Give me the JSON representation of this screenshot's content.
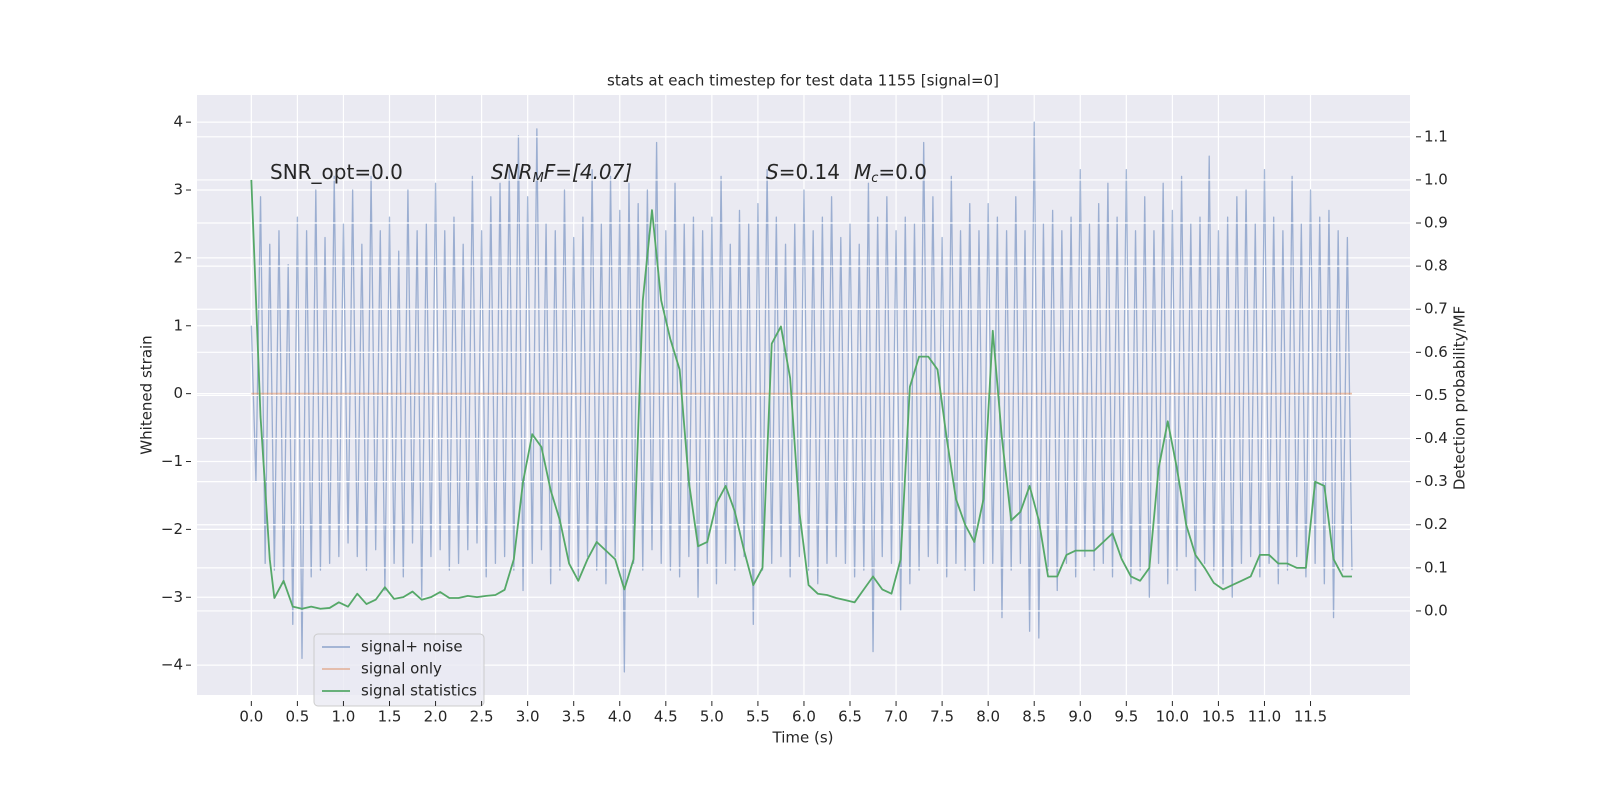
{
  "chart_data": {
    "type": "line",
    "title": "stats at each timestep for test data 1155 [signal=0]",
    "xlabel": "Time (s)",
    "ylabel": "Whitened strain",
    "y2label": "Detection probability/MF",
    "annotations": [
      [
        "SNR_opt=0.0"
      ],
      [
        "SNR",
        "M",
        "F=[4.07]"
      ],
      [
        "S",
        "=0.14",
        "M",
        "c",
        "=0.0"
      ]
    ],
    "xlim": [
      -0.59,
      12.58
    ],
    "ylim": [
      -4.44,
      4.4
    ],
    "y2lim": [
      -0.195,
      1.197
    ],
    "xticks": [
      {
        "value": 0,
        "label": "0.0"
      },
      0.5,
      {
        "value": 1,
        "label": "1.0"
      },
      1.5,
      {
        "value": 2,
        "label": "2.0"
      },
      2.5,
      {
        "value": 3,
        "label": "3.0"
      },
      3.5,
      {
        "value": 4,
        "label": "4.0"
      },
      4.5,
      {
        "value": 5,
        "label": "5.0"
      },
      5.5,
      {
        "value": 6,
        "label": "6.0"
      },
      6.5,
      {
        "value": 7,
        "label": "7.0"
      },
      7.5,
      {
        "value": 8,
        "label": "8.0"
      },
      8.5,
      {
        "value": 9,
        "label": "9.0"
      },
      9.5,
      {
        "value": 10,
        "label": "10.0"
      },
      10.5,
      {
        "value": 11,
        "label": "11.0"
      },
      11.5
    ],
    "yticks": [
      {
        "value": -4,
        "label": "−4"
      },
      {
        "value": -3,
        "label": "−3"
      },
      {
        "value": -2,
        "label": "−2"
      },
      {
        "value": -1,
        "label": "−1"
      },
      0,
      1,
      2,
      3,
      4
    ],
    "y2ticks": [
      {
        "value": 0,
        "label": "0.0"
      },
      0.1,
      0.2,
      0.3,
      0.4,
      0.5,
      0.6,
      0.7,
      0.8,
      0.9,
      {
        "value": 1,
        "label": "1.0"
      },
      1.1
    ],
    "grid": true,
    "legend": "lower left",
    "series": [
      {
        "name": "signal+ noise",
        "color": "#4c72b0",
        "x": [
          0,
          0.05,
          0.1,
          0.15,
          0.2,
          0.25,
          0.3,
          0.35,
          0.4,
          0.45,
          0.5,
          0.55,
          0.6,
          0.65,
          0.7,
          0.75,
          0.8,
          0.85,
          0.9,
          0.95,
          1,
          1.05,
          1.1,
          1.15,
          1.2,
          1.25,
          1.3,
          1.35,
          1.4,
          1.45,
          1.5,
          1.55,
          1.6,
          1.65,
          1.7,
          1.75,
          1.8,
          1.85,
          1.9,
          1.95,
          2,
          2.05,
          2.1,
          2.15,
          2.2,
          2.25,
          2.3,
          2.35,
          2.4,
          2.45,
          2.5,
          2.55,
          2.6,
          2.65,
          2.7,
          2.75,
          2.8,
          2.85,
          2.9,
          2.95,
          3,
          3.05,
          3.1,
          3.15,
          3.2,
          3.25,
          3.3,
          3.35,
          3.4,
          3.45,
          3.5,
          3.55,
          3.6,
          3.65,
          3.7,
          3.75,
          3.8,
          3.85,
          3.9,
          3.95,
          4,
          4.05,
          4.1,
          4.15,
          4.2,
          4.25,
          4.3,
          4.35,
          4.4,
          4.45,
          4.5,
          4.55,
          4.6,
          4.65,
          4.7,
          4.75,
          4.8,
          4.85,
          4.9,
          4.95,
          5,
          5.05,
          5.1,
          5.15,
          5.2,
          5.25,
          5.3,
          5.35,
          5.4,
          5.45,
          5.5,
          5.55,
          5.6,
          5.65,
          5.7,
          5.75,
          5.8,
          5.85,
          5.9,
          5.95,
          6,
          6.05,
          6.1,
          6.15,
          6.2,
          6.25,
          6.3,
          6.35,
          6.4,
          6.45,
          6.5,
          6.55,
          6.6,
          6.65,
          6.7,
          6.75,
          6.8,
          6.85,
          6.9,
          6.95,
          7,
          7.05,
          7.1,
          7.15,
          7.2,
          7.25,
          7.3,
          7.35,
          7.4,
          7.45,
          7.5,
          7.55,
          7.6,
          7.65,
          7.7,
          7.75,
          7.8,
          7.85,
          7.9,
          7.95,
          8,
          8.05,
          8.1,
          8.15,
          8.2,
          8.25,
          8.3,
          8.35,
          8.4,
          8.45,
          8.5,
          8.55,
          8.6,
          8.65,
          8.7,
          8.75,
          8.8,
          8.85,
          8.9,
          8.95,
          9,
          9.05,
          9.1,
          9.15,
          9.2,
          9.25,
          9.3,
          9.35,
          9.4,
          9.45,
          9.5,
          9.55,
          9.6,
          9.65,
          9.7,
          9.75,
          9.8,
          9.85,
          9.9,
          9.95,
          10,
          10.05,
          10.1,
          10.15,
          10.2,
          10.25,
          10.3,
          10.35,
          10.4,
          10.45,
          10.5,
          10.55,
          10.6,
          10.65,
          10.7,
          10.75,
          10.8,
          10.85,
          10.9,
          10.95,
          11,
          11.05,
          11.1,
          11.15,
          11.2,
          11.25,
          11.3,
          11.35,
          11.4,
          11.45,
          11.5,
          11.55,
          11.6,
          11.65,
          11.7,
          11.75,
          11.8,
          11.85,
          11.9,
          11.95
        ],
        "values": [
          1.0,
          -1.3,
          2.9,
          -2.5,
          2.2,
          -2.6,
          2.4,
          -2.8,
          1.9,
          -3.4,
          2.6,
          -3.9,
          2.4,
          -2.7,
          3.0,
          -2.6,
          2.3,
          -2.5,
          3.2,
          -2.4,
          2.5,
          -2.2,
          3.0,
          -2.4,
          2.2,
          -2.6,
          3.2,
          -2.3,
          2.4,
          -2.9,
          2.6,
          -2.5,
          2.1,
          -2.7,
          3.0,
          -2.2,
          2.4,
          -3.0,
          2.5,
          -2.4,
          3.1,
          -2.3,
          2.4,
          -2.6,
          2.6,
          -2.5,
          2.2,
          -2.3,
          3.2,
          -2.2,
          2.4,
          -2.7,
          2.9,
          -2.5,
          3.1,
          -2.4,
          3.3,
          -2.6,
          3.8,
          -2.9,
          2.9,
          -2.5,
          3.9,
          -2.3,
          2.5,
          -2.8,
          2.4,
          -2.6,
          3.0,
          -2.5,
          2.3,
          -2.7,
          2.6,
          -2.4,
          3.3,
          -2.6,
          2.5,
          -2.8,
          3.2,
          -2.4,
          2.7,
          -4.1,
          3.1,
          -2.5,
          2.8,
          -2.6,
          3.0,
          -2.3,
          3.7,
          -2.5,
          2.4,
          -2.6,
          3.1,
          -2.7,
          2.5,
          -2.4,
          2.6,
          -3.0,
          2.4,
          -2.5,
          2.6,
          -2.8,
          3.2,
          -2.5,
          2.2,
          -2.6,
          2.7,
          -2.4,
          2.5,
          -3.4,
          2.8,
          -2.6,
          3.3,
          -2.5,
          2.6,
          -2.4,
          2.2,
          -2.7,
          2.5,
          -2.4,
          3.0,
          -2.6,
          2.4,
          -2.8,
          2.6,
          -2.5,
          2.9,
          -2.4,
          2.3,
          -2.5,
          2.5,
          -2.7,
          2.2,
          -2.6,
          3.1,
          -3.8,
          2.6,
          -2.4,
          2.9,
          -2.5,
          2.4,
          -3.2,
          2.6,
          -2.8,
          2.5,
          -2.6,
          3.7,
          -2.4,
          2.9,
          -2.5,
          2.3,
          -2.7,
          3.2,
          -2.5,
          2.4,
          -2.6,
          2.8,
          -2.9,
          2.4,
          -2.5,
          2.8,
          -2.5,
          2.6,
          -3.3,
          2.4,
          -2.6,
          2.9,
          -2.5,
          2.4,
          -3.5,
          4.0,
          -3.6,
          2.5,
          -2.6,
          2.7,
          -2.9,
          2.4,
          -2.5,
          2.6,
          -2.7,
          3.3,
          -2.4,
          2.5,
          -2.6,
          2.8,
          -2.5,
          3.1,
          -2.7,
          2.6,
          -2.4,
          3.3,
          -2.8,
          2.4,
          -2.6,
          2.9,
          -3.0,
          2.4,
          -2.5,
          3.1,
          -2.8,
          2.7,
          -2.6,
          3.2,
          -2.4,
          2.5,
          -2.9,
          2.6,
          -2.5,
          3.5,
          -2.6,
          2.4,
          -2.8,
          2.6,
          -3.0,
          2.9,
          -2.5,
          3.0,
          -2.4,
          2.5,
          -2.7,
          3.3,
          -2.5,
          2.6,
          -2.8,
          2.4,
          -2.6,
          3.2,
          -2.4,
          2.5,
          -2.7,
          3.0,
          -2.5,
          2.6,
          -2.8,
          2.7,
          -3.3,
          2.4,
          -2.6,
          2.3,
          -2.6
        ]
      },
      {
        "name": "signal only",
        "color": "#dd8452",
        "x": [
          0,
          11.95
        ],
        "values": [
          0,
          0
        ]
      },
      {
        "name": "signal statistics",
        "color": "#55a868",
        "axis": "y2",
        "x": [
          0,
          0.1,
          0.2,
          0.25,
          0.35,
          0.45,
          0.55,
          0.65,
          0.75,
          0.85,
          0.95,
          1.05,
          1.15,
          1.25,
          1.35,
          1.45,
          1.55,
          1.65,
          1.75,
          1.85,
          1.95,
          2.05,
          2.15,
          2.25,
          2.35,
          2.45,
          2.55,
          2.65,
          2.75,
          2.85,
          2.95,
          3.05,
          3.15,
          3.25,
          3.35,
          3.45,
          3.55,
          3.65,
          3.75,
          3.85,
          3.95,
          4.05,
          4.15,
          4.25,
          4.35,
          4.45,
          4.55,
          4.65,
          4.75,
          4.85,
          4.95,
          5.05,
          5.15,
          5.25,
          5.35,
          5.45,
          5.55,
          5.65,
          5.75,
          5.85,
          5.95,
          6.05,
          6.15,
          6.25,
          6.35,
          6.45,
          6.55,
          6.65,
          6.75,
          6.85,
          6.95,
          7.05,
          7.15,
          7.25,
          7.35,
          7.45,
          7.55,
          7.65,
          7.75,
          7.85,
          7.95,
          8.05,
          8.15,
          8.25,
          8.35,
          8.45,
          8.55,
          8.65,
          8.75,
          8.85,
          8.95,
          9.05,
          9.15,
          9.25,
          9.35,
          9.45,
          9.55,
          9.65,
          9.75,
          9.85,
          9.95,
          10.05,
          10.15,
          10.25,
          10.35,
          10.45,
          10.55,
          10.65,
          10.75,
          10.85,
          10.95,
          11.05,
          11.15,
          11.25,
          11.35,
          11.45,
          11.55,
          11.65,
          11.75,
          11.85,
          11.95
        ],
        "values": [
          1.0,
          0.45,
          0.12,
          0.03,
          0.07,
          0.01,
          0.005,
          0.01,
          0.005,
          0.007,
          0.02,
          0.01,
          0.04,
          0.016,
          0.026,
          0.055,
          0.028,
          0.032,
          0.045,
          0.026,
          0.032,
          0.044,
          0.03,
          0.03,
          0.035,
          0.032,
          0.035,
          0.037,
          0.049,
          0.12,
          0.3,
          0.41,
          0.38,
          0.28,
          0.21,
          0.11,
          0.07,
          0.12,
          0.16,
          0.14,
          0.12,
          0.05,
          0.12,
          0.72,
          0.93,
          0.72,
          0.63,
          0.56,
          0.3,
          0.15,
          0.16,
          0.25,
          0.29,
          0.23,
          0.14,
          0.06,
          0.1,
          0.62,
          0.66,
          0.54,
          0.23,
          0.06,
          0.04,
          0.037,
          0.03,
          0.025,
          0.02,
          0.05,
          0.08,
          0.05,
          0.04,
          0.12,
          0.52,
          0.59,
          0.59,
          0.56,
          0.4,
          0.26,
          0.2,
          0.16,
          0.26,
          0.65,
          0.4,
          0.21,
          0.23,
          0.29,
          0.21,
          0.08,
          0.08,
          0.13,
          0.14,
          0.14,
          0.14,
          0.16,
          0.18,
          0.12,
          0.08,
          0.07,
          0.1,
          0.33,
          0.44,
          0.33,
          0.2,
          0.13,
          0.1,
          0.065,
          0.05,
          0.06,
          0.07,
          0.08,
          0.13,
          0.13,
          0.11,
          0.11,
          0.1,
          0.1,
          0.3,
          0.29,
          0.12,
          0.08,
          0.08
        ]
      }
    ]
  }
}
